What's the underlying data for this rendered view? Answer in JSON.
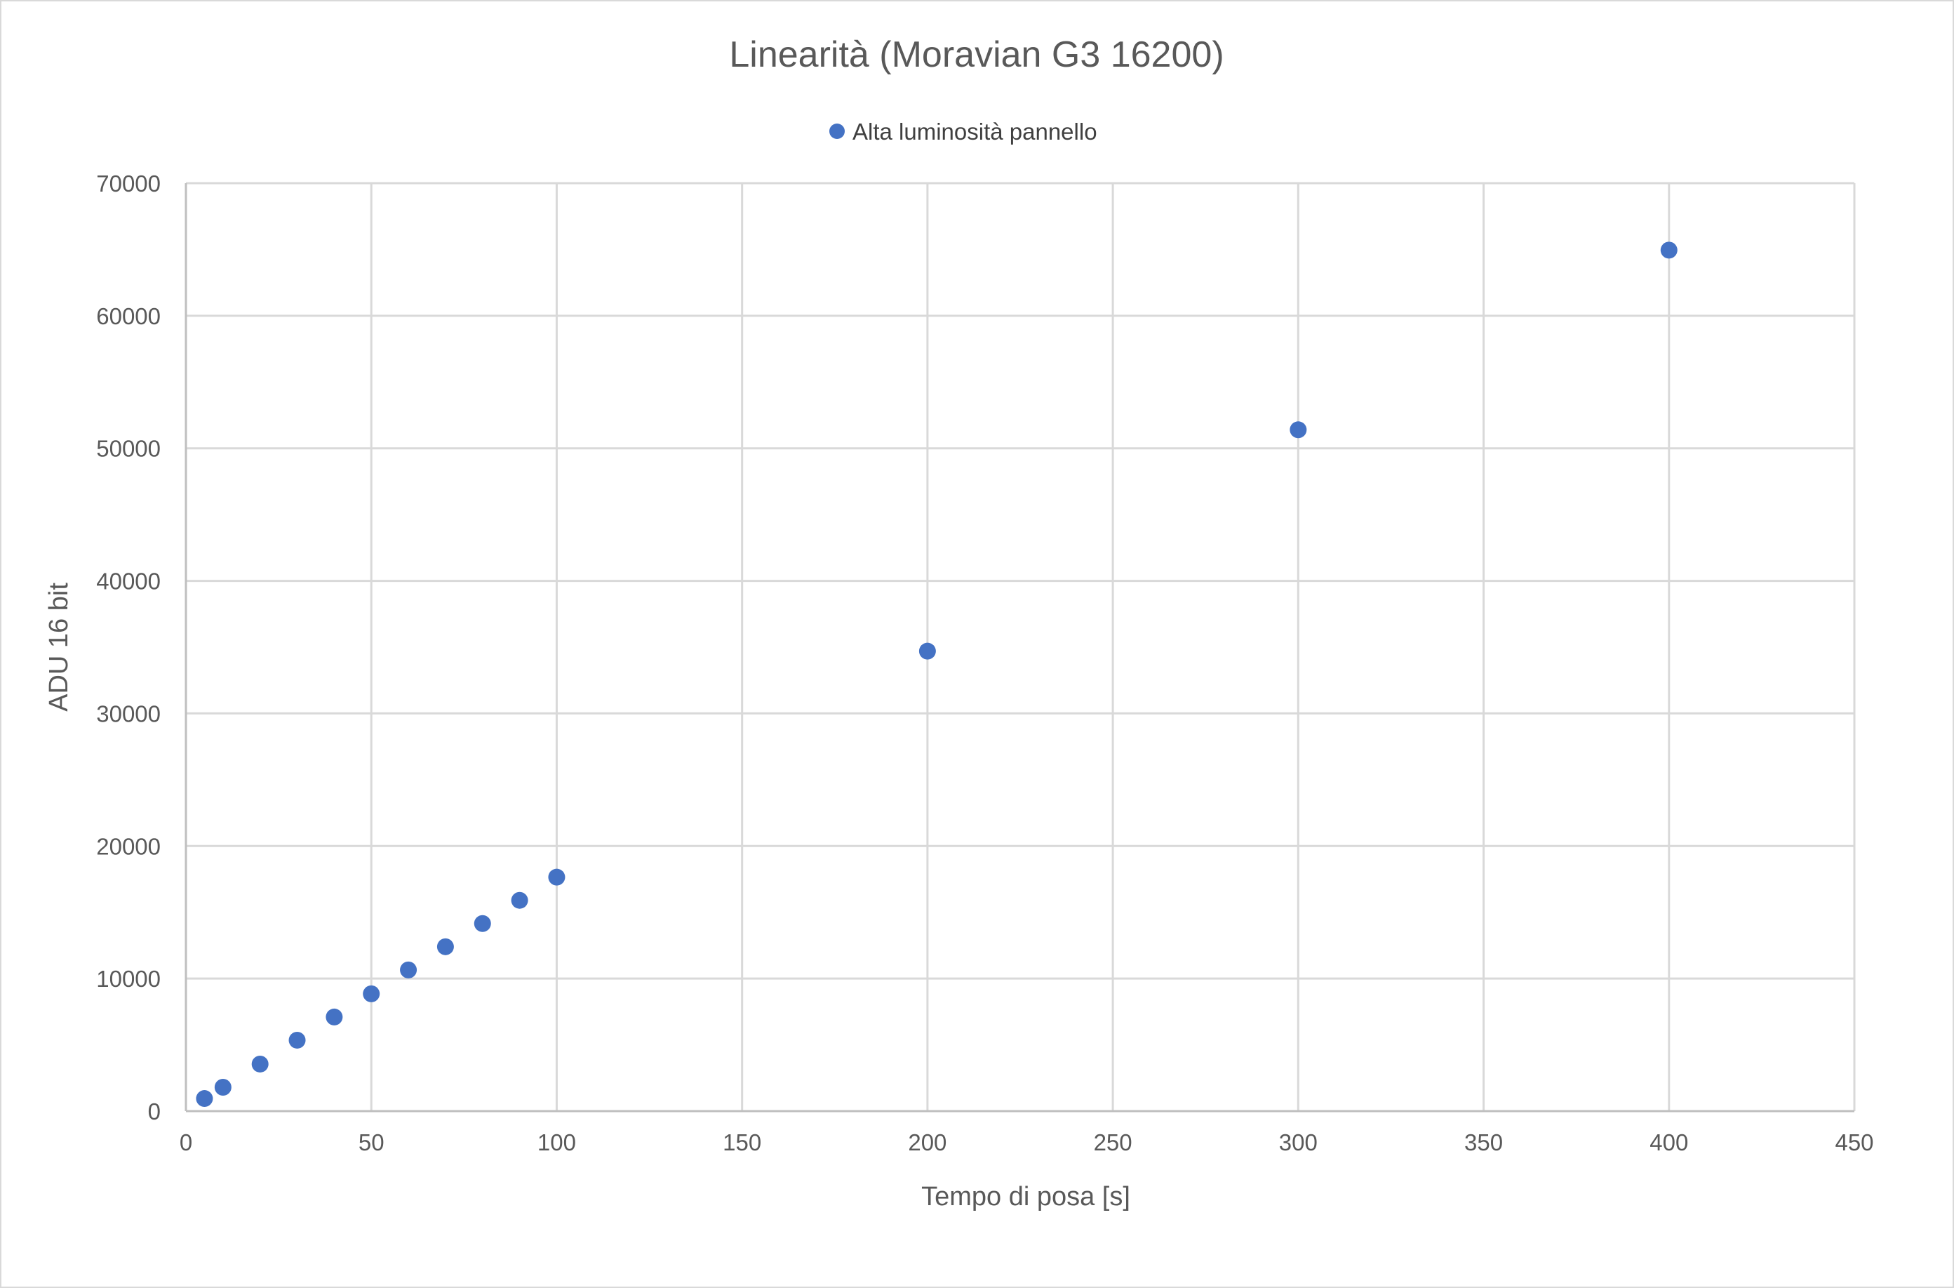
{
  "chart_data": {
    "type": "scatter",
    "title": "Linearità (Moravian G3 16200)",
    "xlabel": "Tempo di posa [s]",
    "ylabel": "ADU 16 bit",
    "xlim": [
      0,
      450
    ],
    "ylim": [
      0,
      70000
    ],
    "x_ticks": [
      "0",
      "50",
      "100",
      "150",
      "200",
      "250",
      "300",
      "350",
      "400",
      "450"
    ],
    "y_ticks": [
      "0",
      "10000",
      "20000",
      "30000",
      "40000",
      "50000",
      "60000",
      "70000"
    ],
    "grid": true,
    "legend_position": "top-center",
    "series": [
      {
        "name": "Alta luminosità pannello",
        "color": "#4472c4",
        "points": [
          {
            "x": 5,
            "y": 950
          },
          {
            "x": 10,
            "y": 1800
          },
          {
            "x": 20,
            "y": 3550
          },
          {
            "x": 30,
            "y": 5350
          },
          {
            "x": 40,
            "y": 7100
          },
          {
            "x": 50,
            "y": 8850
          },
          {
            "x": 60,
            "y": 10650
          },
          {
            "x": 70,
            "y": 12400
          },
          {
            "x": 80,
            "y": 14150
          },
          {
            "x": 90,
            "y": 15900
          },
          {
            "x": 100,
            "y": 17650
          },
          {
            "x": 200,
            "y": 34700
          },
          {
            "x": 300,
            "y": 51400
          },
          {
            "x": 400,
            "y": 64950
          }
        ]
      }
    ]
  }
}
